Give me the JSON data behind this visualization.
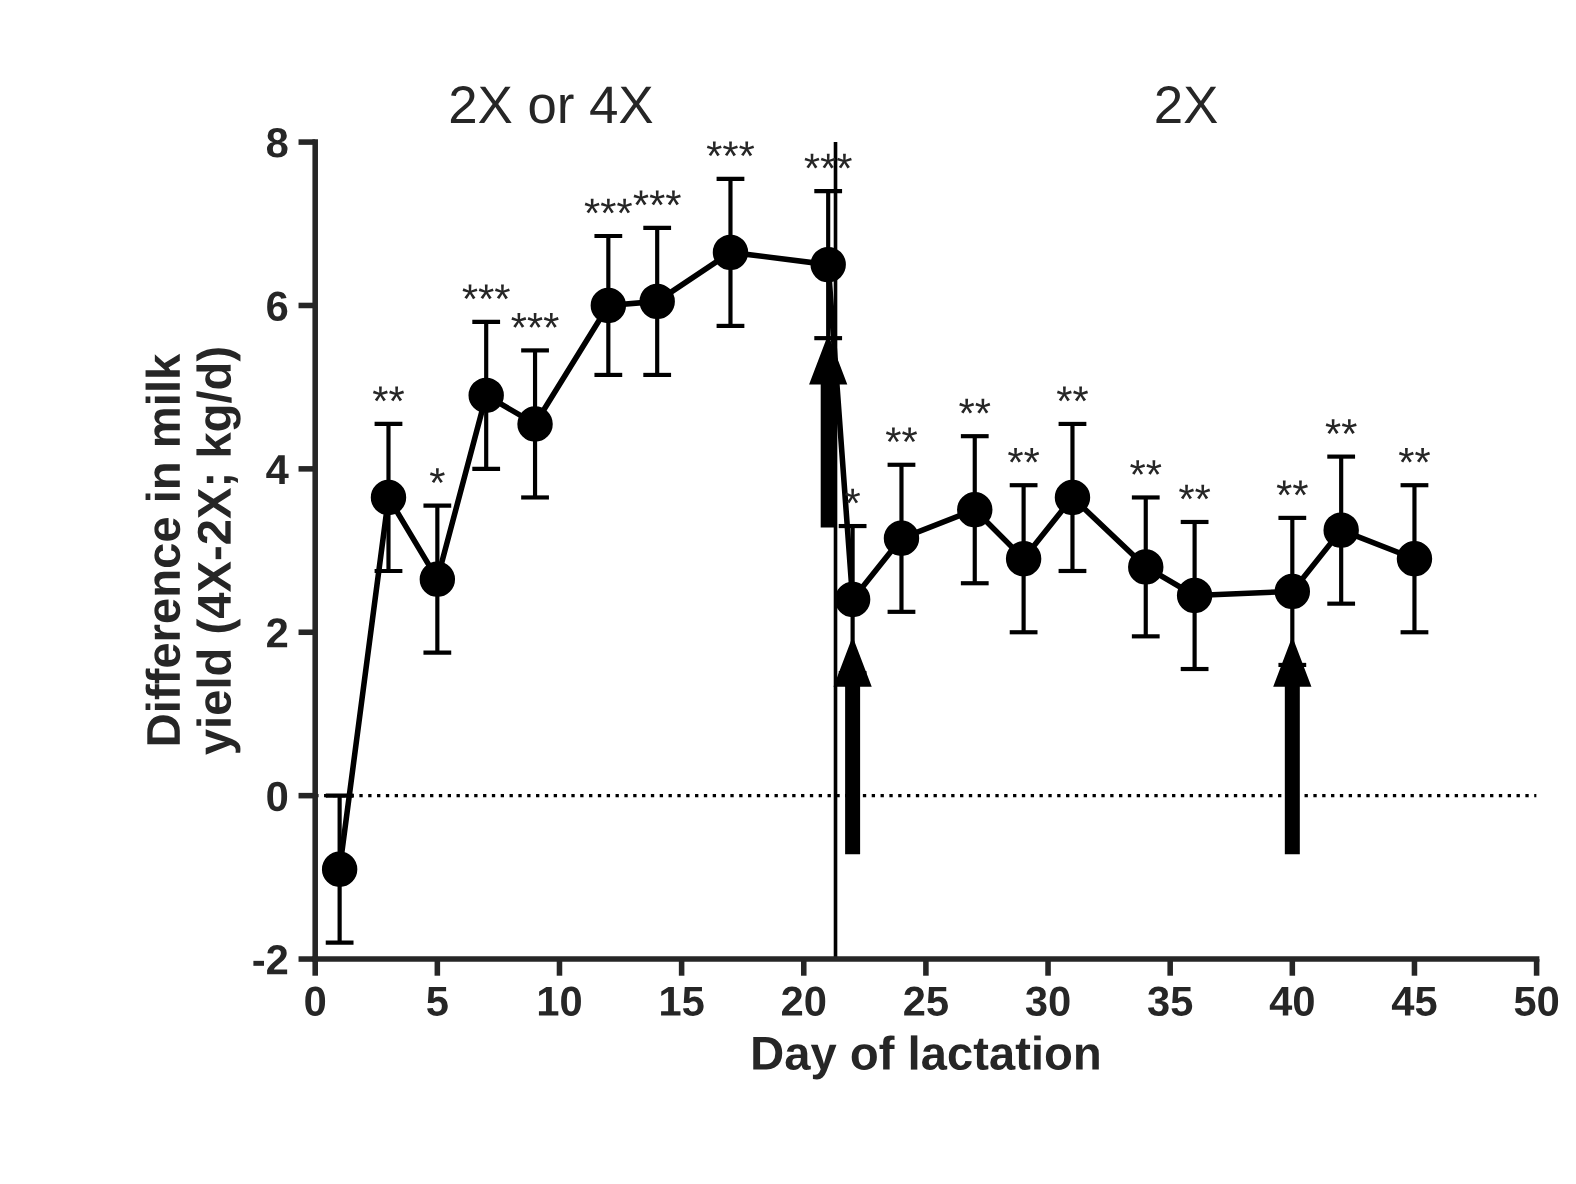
{
  "chart_data": {
    "type": "line",
    "xlabel": "Day of lactation",
    "ylabel": "Difference in milk\nyield (4X-2X; kg/d)",
    "x": [
      1,
      3,
      5,
      7,
      9,
      12,
      14,
      17,
      21,
      22,
      24,
      27,
      29,
      31,
      34,
      36,
      40,
      42,
      45
    ],
    "values": [
      -0.9,
      3.65,
      2.65,
      4.9,
      4.55,
      6.0,
      6.05,
      6.65,
      6.5,
      2.4,
      3.15,
      3.5,
      2.9,
      3.65,
      2.8,
      2.45,
      2.5,
      3.25,
      2.9
    ],
    "errors": [
      0.9,
      0.9,
      0.9,
      0.9,
      0.9,
      0.85,
      0.9,
      0.9,
      0.9,
      0.9,
      0.9,
      0.9,
      0.9,
      0.9,
      0.85,
      0.9,
      0.9,
      0.9,
      0.9
    ],
    "color": "#000000",
    "marker": "circle",
    "line_style": "solid",
    "xlim": [
      0,
      50
    ],
    "xticks": [
      0,
      5,
      10,
      15,
      20,
      25,
      30,
      35,
      40,
      45,
      50
    ],
    "ylim": [
      -2,
      8
    ],
    "yticks": [
      -2,
      0,
      2,
      4,
      6,
      8
    ],
    "ref_lines": [
      {
        "axis": "y",
        "value": 0,
        "line_style": "dotted",
        "color": "#000000"
      },
      {
        "axis": "x",
        "value": 21.3,
        "line_style": "solid",
        "color": "#000000"
      }
    ],
    "annotations": [
      {
        "text": "**",
        "x": 3,
        "y": 4.55
      },
      {
        "text": "*",
        "x": 5,
        "y": 3.55
      },
      {
        "text": "***",
        "x": 7,
        "y": 5.8
      },
      {
        "text": "***",
        "x": 9,
        "y": 5.45
      },
      {
        "text": "***",
        "x": 12,
        "y": 6.85
      },
      {
        "text": "***",
        "x": 14,
        "y": 6.95
      },
      {
        "text": "***",
        "x": 17,
        "y": 7.55
      },
      {
        "text": "***",
        "x": 21,
        "y": 7.4
      },
      {
        "text": "*",
        "x": 22,
        "y": 3.3
      },
      {
        "text": "**",
        "x": 24,
        "y": 4.05
      },
      {
        "text": "**",
        "x": 27,
        "y": 4.4
      },
      {
        "text": "**",
        "x": 29,
        "y": 3.8
      },
      {
        "text": "**",
        "x": 31,
        "y": 4.55
      },
      {
        "text": "**",
        "x": 34,
        "y": 3.65
      },
      {
        "text": "**",
        "x": 36,
        "y": 3.35
      },
      {
        "text": "**",
        "x": 40,
        "y": 3.4
      },
      {
        "text": "**",
        "x": 42,
        "y": 4.15
      },
      {
        "text": "**",
        "x": 45,
        "y": 3.8
      },
      "2X or 4X",
      "2X"
    ]
  }
}
